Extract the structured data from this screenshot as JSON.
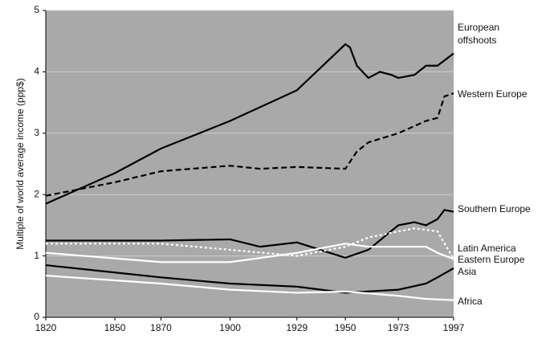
{
  "chart_data": {
    "type": "line",
    "y_label": "Multiple of world average income (ppp$)",
    "xlim": [
      1820,
      1997
    ],
    "xticks": [
      1820,
      1850,
      1870,
      1900,
      1929,
      1950,
      1973,
      1997
    ],
    "ylim": [
      0,
      5
    ],
    "yticks": [
      0,
      1,
      2,
      3,
      4,
      5
    ],
    "grid": true,
    "series": [
      {
        "name": "European offshoots",
        "color": "#000000",
        "style": "solid",
        "x": [
          1820,
          1850,
          1870,
          1900,
          1929,
          1950,
          1952,
          1955,
          1960,
          1965,
          1970,
          1973,
          1980,
          1985,
          1990,
          1997
        ],
        "values": [
          1.85,
          2.35,
          2.75,
          3.2,
          3.7,
          4.45,
          4.4,
          4.1,
          3.9,
          4.0,
          3.95,
          3.9,
          3.95,
          4.1,
          4.1,
          4.3
        ]
      },
      {
        "name": "Western Europe",
        "color": "#000000",
        "style": "dashed",
        "x": [
          1820,
          1850,
          1870,
          1900,
          1913,
          1929,
          1950,
          1955,
          1960,
          1973,
          1985,
          1990,
          1993,
          1997
        ],
        "values": [
          1.98,
          2.2,
          2.38,
          2.47,
          2.42,
          2.45,
          2.42,
          2.7,
          2.85,
          3.0,
          3.2,
          3.25,
          3.6,
          3.65
        ]
      },
      {
        "name": "Southern Europe",
        "color": "#000000",
        "style": "solid",
        "x": [
          1820,
          1870,
          1900,
          1913,
          1929,
          1950,
          1960,
          1973,
          1980,
          1985,
          1990,
          1993,
          1997
        ],
        "values": [
          1.25,
          1.25,
          1.27,
          1.15,
          1.22,
          0.97,
          1.1,
          1.5,
          1.55,
          1.5,
          1.6,
          1.75,
          1.72
        ]
      },
      {
        "name": "Latin America",
        "color": "#ffffff",
        "style": "dotted",
        "x": [
          1820,
          1870,
          1900,
          1929,
          1950,
          1960,
          1973,
          1980,
          1990,
          1997
        ],
        "values": [
          1.2,
          1.2,
          1.1,
          1.0,
          1.15,
          1.3,
          1.4,
          1.45,
          1.4,
          0.95
        ]
      },
      {
        "name": "Eastern Europe",
        "color": "#ffffff",
        "style": "solid",
        "x": [
          1820,
          1870,
          1900,
          1929,
          1950,
          1960,
          1973,
          1985,
          1990,
          1997
        ],
        "values": [
          1.05,
          0.9,
          0.9,
          1.05,
          1.2,
          1.15,
          1.15,
          1.15,
          1.05,
          0.95
        ]
      },
      {
        "name": "Asia",
        "color": "#000000",
        "style": "solid",
        "x": [
          1820,
          1870,
          1900,
          1929,
          1950,
          1973,
          1985,
          1990,
          1997
        ],
        "values": [
          0.85,
          0.65,
          0.55,
          0.5,
          0.4,
          0.45,
          0.55,
          0.65,
          0.8
        ]
      },
      {
        "name": "Africa",
        "color": "#ffffff",
        "style": "solid",
        "x": [
          1820,
          1870,
          1900,
          1929,
          1950,
          1973,
          1985,
          1997
        ],
        "values": [
          0.68,
          0.55,
          0.45,
          0.4,
          0.42,
          0.35,
          0.3,
          0.28
        ]
      }
    ]
  }
}
